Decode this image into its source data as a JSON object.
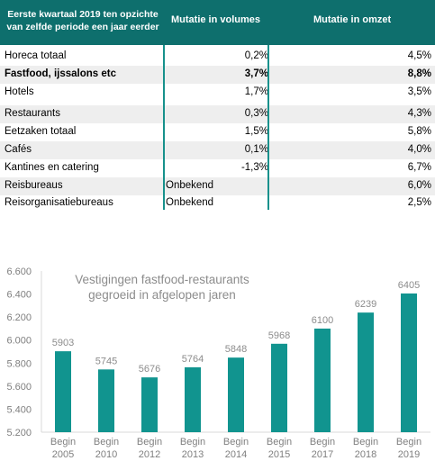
{
  "table": {
    "headers": {
      "period": "Eerste kwartaal 2019 ten opzichte van zelfde periode een jaar eerder",
      "volumes": "Mutatie in volumes",
      "omzet": "Mutatie in omzet"
    },
    "rows": [
      {
        "name": "Horeca totaal",
        "volume": "0,2%",
        "omzet": "4,5%"
      },
      {
        "name": "Fastfood, ijssalons etc",
        "volume": "3,7%",
        "omzet": "8,8%"
      },
      {
        "name": "Hotels",
        "volume": "1,7%",
        "omzet": "3,5%"
      },
      {
        "name": "Restaurants",
        "volume": "0,3%",
        "omzet": "4,3%"
      },
      {
        "name": "Eetzaken totaal",
        "volume": "1,5%",
        "omzet": "5,8%"
      },
      {
        "name": "Cafés",
        "volume": "0,1%",
        "omzet": "4,0%"
      },
      {
        "name": "Kantines en catering",
        "volume": "-1,3%",
        "omzet": "6,7%"
      },
      {
        "name": "Reisbureaus",
        "volume": "Onbekend",
        "omzet": "6,0%"
      },
      {
        "name": "Reisorganisatiebureaus",
        "volume": "Onbekend",
        "omzet": "2,5%"
      }
    ],
    "colors": {
      "header_bg": "#0e6f6d",
      "divider": "#17918c",
      "row_shade": "#eeeeee"
    }
  },
  "chart_data": {
    "type": "bar",
    "title_line1": "Vestigingen fastfood-restaurants",
    "title_line2": "gegroeid in afgelopen jaren",
    "categories": [
      [
        "Begin",
        "2005"
      ],
      [
        "Begin",
        "2010"
      ],
      [
        "Begin",
        "2012"
      ],
      [
        "Begin",
        "2013"
      ],
      [
        "Begin",
        "2014"
      ],
      [
        "Begin",
        "2015"
      ],
      [
        "Begin",
        "2017"
      ],
      [
        "Begin",
        "2018"
      ],
      [
        "Begin",
        "2019"
      ]
    ],
    "values": [
      5903,
      5745,
      5676,
      5764,
      5848,
      5968,
      6100,
      6239,
      6405
    ],
    "value_labels": [
      "5903",
      "5745",
      "5676",
      "5764",
      "5848",
      "5968",
      "6100",
      "6239",
      "6405"
    ],
    "ylim": [
      5200,
      6600
    ],
    "yticks": [
      5200,
      5400,
      5600,
      5800,
      6000,
      6200,
      6400,
      6600
    ],
    "ytick_labels": [
      "5.200",
      "5.400",
      "5.600",
      "5.800",
      "6.000",
      "6.200",
      "6.400",
      "6.600"
    ],
    "grid": false,
    "bar_color": "#11948f",
    "label_color": "#8c8c8c"
  }
}
